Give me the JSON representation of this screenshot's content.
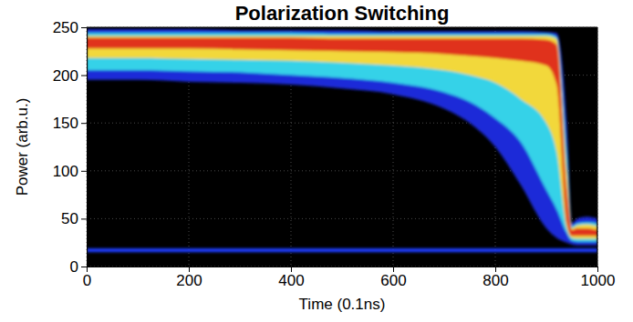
{
  "chart_data": {
    "type": "density",
    "title": "Polarization Switching",
    "x_label": "Time (0.1ns)",
    "y_label": "Power (arb.u.)",
    "xlim": [
      0,
      1000
    ],
    "ylim": [
      0,
      250
    ],
    "xticks": [
      0,
      200,
      400,
      600,
      800,
      1000
    ],
    "yticks": [
      0,
      50,
      100,
      150,
      200,
      250
    ],
    "grid": true,
    "x": [
      0,
      100,
      200,
      300,
      400,
      500,
      600,
      700,
      750,
      800,
      850,
      900,
      920,
      940,
      950,
      960,
      980,
      1000
    ],
    "series": [
      {
        "type": "band",
        "color": "#1a2cd8",
        "values": [
          248,
          248,
          248,
          247,
          247,
          247,
          246,
          246,
          246,
          246,
          246,
          245,
          244,
          150,
          45,
          50,
          52,
          50
        ],
        "low": [
          195,
          195,
          193,
          192,
          190,
          186,
          180,
          165,
          150,
          125,
          85,
          40,
          30,
          25,
          23,
          22,
          22,
          22
        ]
      },
      {
        "type": "band",
        "color": "#35d2e8",
        "values": [
          244,
          244,
          244,
          244,
          244,
          243,
          243,
          243,
          243,
          243,
          243,
          243,
          240,
          120,
          42,
          45,
          46,
          45
        ],
        "low": [
          205,
          205,
          204,
          203,
          200,
          197,
          192,
          182,
          172,
          155,
          130,
          80,
          60,
          35,
          27,
          26,
          26,
          26
        ]
      },
      {
        "type": "band",
        "color": "#f2d83a",
        "values": [
          241,
          241,
          241,
          241,
          241,
          241,
          241,
          241,
          241,
          241,
          241,
          241,
          238,
          100,
          40,
          43,
          44,
          42
        ],
        "low": [
          218,
          218,
          217,
          216,
          215,
          213,
          210,
          205,
          200,
          192,
          175,
          150,
          120,
          40,
          30,
          29,
          29,
          29
        ]
      },
      {
        "type": "band",
        "color": "#e0301a",
        "values": [
          239,
          239,
          239,
          239,
          239,
          238,
          238,
          238,
          238,
          238,
          238,
          237,
          232,
          80,
          38,
          40,
          40,
          38
        ],
        "low": [
          228,
          228,
          228,
          227,
          226,
          225,
          224,
          222,
          220,
          218,
          215,
          210,
          190,
          45,
          32,
          32,
          32,
          32
        ]
      },
      {
        "type": "band",
        "color": "#1f3cff",
        "values": [
          19,
          19,
          19,
          19,
          19,
          19,
          19,
          19,
          19,
          19,
          19,
          19,
          19,
          19,
          19,
          19,
          19,
          19
        ],
        "low": [
          15,
          15,
          15,
          15,
          15,
          15,
          15,
          15,
          15,
          15,
          15,
          15,
          15,
          15,
          15,
          15,
          15,
          15
        ]
      }
    ]
  }
}
